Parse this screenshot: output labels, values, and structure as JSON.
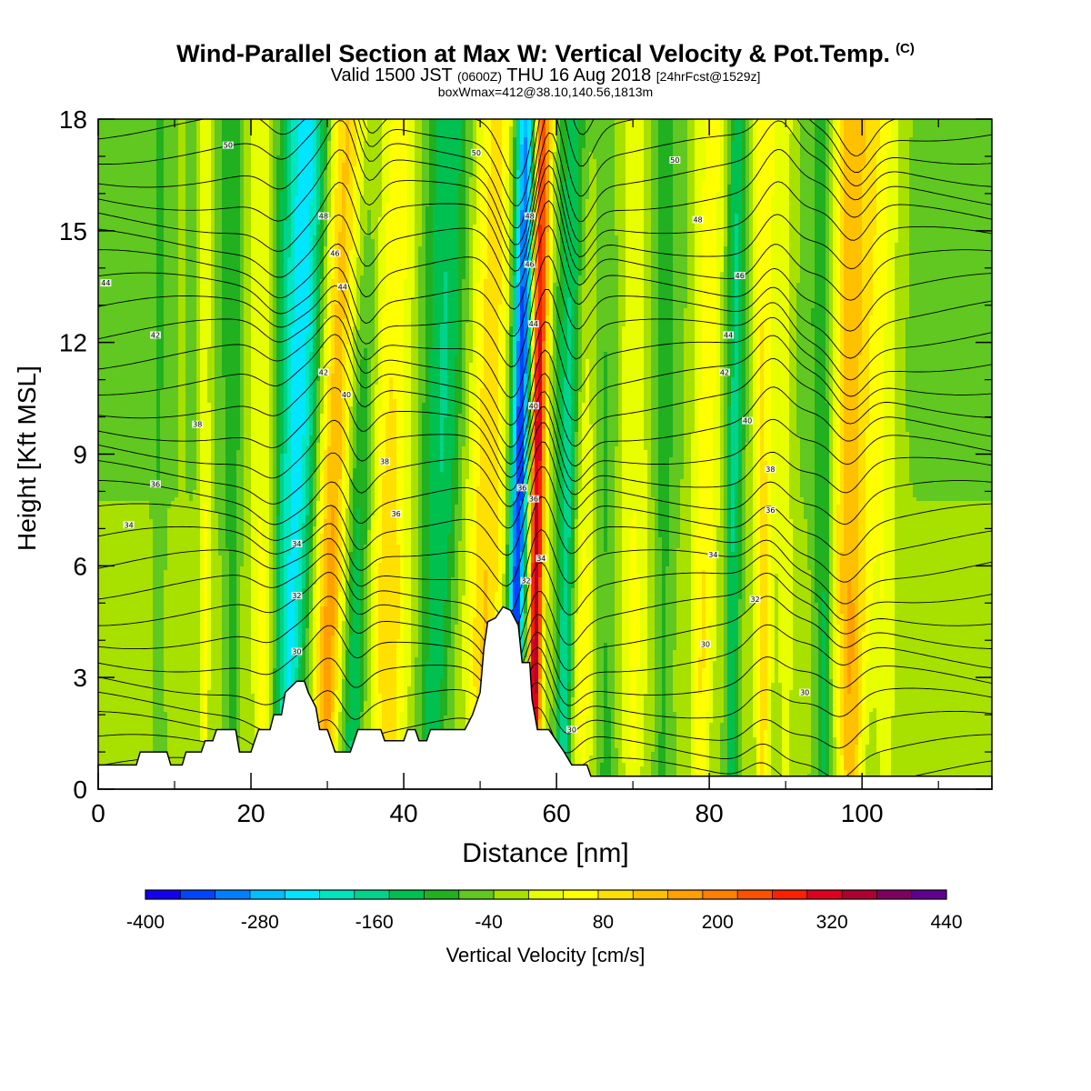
{
  "titles": {
    "main": "Wind-Parallel Section at Max W: Vertical Velocity & Pot.Temp.",
    "copyright": "(C)",
    "valid_a": "Valid 1500 JST",
    "valid_b": "(0600Z)",
    "valid_c": "THU 16 Aug 2018",
    "valid_d": "[24hrFcst@1529z]",
    "box": "boxWmax=412@38.10,140.56,1813m"
  },
  "chart_data": {
    "type": "heatmap",
    "xlabel": "Distance [nm]",
    "ylabel": "Height [Kft MSL]",
    "xlim": [
      0,
      117
    ],
    "ylim": [
      0,
      18
    ],
    "xticks": [
      0,
      20,
      40,
      60,
      80,
      100
    ],
    "yticks": [
      0,
      3,
      6,
      9,
      12,
      15,
      18
    ],
    "colorbar": {
      "label": "Vertical Velocity [cm/s]",
      "min": -400,
      "max": 440,
      "step": 40,
      "tick_values": [
        -400,
        -280,
        -160,
        -40,
        80,
        200,
        320,
        440
      ],
      "colors": [
        "#1400f0",
        "#0044ff",
        "#0080ff",
        "#00c0ff",
        "#00e6ff",
        "#00e6c0",
        "#00d38a",
        "#00c050",
        "#20b020",
        "#60c820",
        "#a8e000",
        "#e8ff00",
        "#ffff00",
        "#ffe000",
        "#ffc000",
        "#ffa000",
        "#ff8000",
        "#ff5000",
        "#ff2000",
        "#e00020",
        "#b00030",
        "#800060",
        "#600090"
      ]
    },
    "terrain_kft": [
      [
        0,
        0.65
      ],
      [
        5,
        0.65
      ],
      [
        5.5,
        1
      ],
      [
        9,
        1
      ],
      [
        9.5,
        0.65
      ],
      [
        11,
        0.65
      ],
      [
        11.5,
        1
      ],
      [
        13.5,
        1
      ],
      [
        14,
        1.3
      ],
      [
        15,
        1.3
      ],
      [
        15.5,
        1.6
      ],
      [
        18,
        1.6
      ],
      [
        18.5,
        1
      ],
      [
        20,
        1
      ],
      [
        20.5,
        1.3
      ],
      [
        21,
        1.6
      ],
      [
        22.5,
        1.6
      ],
      [
        23,
        2
      ],
      [
        24,
        2
      ],
      [
        24.5,
        2.6
      ],
      [
        26,
        2.9
      ],
      [
        27,
        2.9
      ],
      [
        27.5,
        2.6
      ],
      [
        28.5,
        2.2
      ],
      [
        29,
        1.6
      ],
      [
        30,
        1.6
      ],
      [
        30.5,
        1.3
      ],
      [
        31,
        1
      ],
      [
        33,
        1
      ],
      [
        33.5,
        1.3
      ],
      [
        34,
        1.6
      ],
      [
        37,
        1.6
      ],
      [
        37.5,
        1.3
      ],
      [
        40,
        1.3
      ],
      [
        40.5,
        1.6
      ],
      [
        41.5,
        1.6
      ],
      [
        42,
        1.3
      ],
      [
        43,
        1.3
      ],
      [
        43.5,
        1.6
      ],
      [
        48,
        1.6
      ],
      [
        49,
        2
      ],
      [
        50,
        2.6
      ],
      [
        50.5,
        3.8
      ],
      [
        51,
        4.5
      ],
      [
        52,
        4.6
      ],
      [
        53,
        4.9
      ],
      [
        54,
        4.8
      ],
      [
        55,
        4.4
      ],
      [
        55.5,
        3.4
      ],
      [
        56.5,
        3.4
      ],
      [
        56.8,
        2.4
      ],
      [
        57.5,
        1.6
      ],
      [
        59,
        1.6
      ],
      [
        60,
        1.3
      ],
      [
        61,
        1
      ],
      [
        62,
        0.65
      ],
      [
        64,
        0.65
      ],
      [
        64.5,
        0.35
      ],
      [
        117,
        0.35
      ]
    ],
    "theta_labels": [
      {
        "x": 17,
        "y": 17.3,
        "text": "50"
      },
      {
        "x": 49.5,
        "y": 17.1,
        "text": "50"
      },
      {
        "x": 75.5,
        "y": 16.9,
        "text": "50"
      },
      {
        "x": 29.5,
        "y": 15.4,
        "text": "48"
      },
      {
        "x": 56.5,
        "y": 15.4,
        "text": "48"
      },
      {
        "x": 78.5,
        "y": 15.3,
        "text": "48"
      },
      {
        "x": 31,
        "y": 14.4,
        "text": "46"
      },
      {
        "x": 56.5,
        "y": 14.1,
        "text": "46"
      },
      {
        "x": 84,
        "y": 13.8,
        "text": "46"
      },
      {
        "x": 1,
        "y": 13.6,
        "text": "44"
      },
      {
        "x": 32,
        "y": 13.5,
        "text": "44"
      },
      {
        "x": 57,
        "y": 12.5,
        "text": "44"
      },
      {
        "x": 82.5,
        "y": 12.2,
        "text": "44"
      },
      {
        "x": 7.5,
        "y": 12.2,
        "text": "42"
      },
      {
        "x": 29.5,
        "y": 11.2,
        "text": "42"
      },
      {
        "x": 82,
        "y": 11.2,
        "text": "42"
      },
      {
        "x": 32.5,
        "y": 10.6,
        "text": "40"
      },
      {
        "x": 57,
        "y": 10.3,
        "text": "40"
      },
      {
        "x": 85,
        "y": 9.9,
        "text": "40"
      },
      {
        "x": 13,
        "y": 9.8,
        "text": "38"
      },
      {
        "x": 37.5,
        "y": 8.8,
        "text": "38"
      },
      {
        "x": 88,
        "y": 8.6,
        "text": "38"
      },
      {
        "x": 7.5,
        "y": 8.2,
        "text": "36"
      },
      {
        "x": 55.5,
        "y": 8.1,
        "text": "36"
      },
      {
        "x": 57,
        "y": 7.8,
        "text": "36"
      },
      {
        "x": 39,
        "y": 7.4,
        "text": "36"
      },
      {
        "x": 88,
        "y": 7.5,
        "text": "36"
      },
      {
        "x": 4,
        "y": 7.1,
        "text": "34"
      },
      {
        "x": 26,
        "y": 6.6,
        "text": "34"
      },
      {
        "x": 58,
        "y": 6.2,
        "text": "34"
      },
      {
        "x": 80.5,
        "y": 6.3,
        "text": "34"
      },
      {
        "x": 56,
        "y": 5.6,
        "text": "32"
      },
      {
        "x": 26,
        "y": 5.2,
        "text": "32"
      },
      {
        "x": 86,
        "y": 5.1,
        "text": "32"
      },
      {
        "x": 26,
        "y": 3.7,
        "text": "30"
      },
      {
        "x": 79.5,
        "y": 3.9,
        "text": "30"
      },
      {
        "x": 92.5,
        "y": 2.6,
        "text": "30"
      },
      {
        "x": 62,
        "y": 1.6,
        "text": "30"
      }
    ]
  }
}
